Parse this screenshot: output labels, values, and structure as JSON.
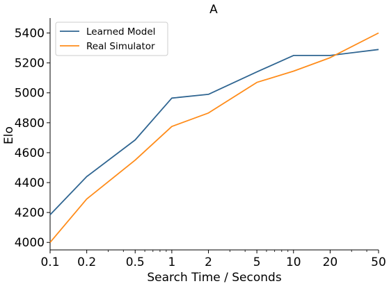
{
  "chart_data": {
    "type": "line",
    "title": "A",
    "xlabel": "Search Time / Seconds",
    "ylabel": "Elo",
    "xscale": "log",
    "xlim": [
      0.1,
      50
    ],
    "ylim": [
      3950,
      5500
    ],
    "xticks": [
      0.1,
      0.2,
      0.5,
      1,
      2,
      5,
      10,
      20,
      50
    ],
    "xtick_labels": [
      "0.1",
      "0.2",
      "0.5",
      "1",
      "2",
      "5",
      "10",
      "20",
      "50"
    ],
    "yticks": [
      4000,
      4200,
      4400,
      4600,
      4800,
      5000,
      5200,
      5400
    ],
    "ytick_labels": [
      "4000",
      "4200",
      "4400",
      "4600",
      "4800",
      "5000",
      "5200",
      "5400"
    ],
    "grid": false,
    "legend_position": "top-left",
    "x": [
      0.1,
      0.2,
      0.5,
      1,
      2,
      5,
      10,
      20,
      50
    ],
    "series": [
      {
        "name": "Learned Model",
        "color": "#2f6591",
        "values": [
          4185,
          4440,
          4685,
          4965,
          4990,
          5140,
          5250,
          5250,
          5290
        ]
      },
      {
        "name": "Real Simulator",
        "color": "#ff8c1a",
        "values": [
          4000,
          4290,
          4550,
          4775,
          4865,
          5070,
          5145,
          5235,
          5400
        ]
      }
    ]
  }
}
